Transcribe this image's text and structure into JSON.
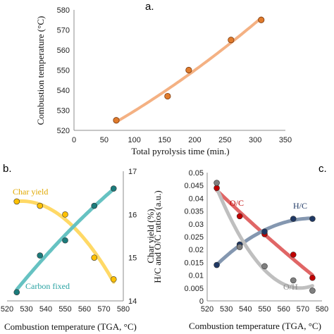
{
  "chart_data": [
    {
      "panel": "a.",
      "type": "scatter",
      "xlabel": "Total pyrolysis time (min.)",
      "ylabel": "Combustion temperature (°C)",
      "xlim": [
        0,
        350
      ],
      "ylim": [
        520,
        580
      ],
      "xticks": [
        "0",
        "50",
        "100",
        "150",
        "200",
        "250",
        "300",
        "350"
      ],
      "yticks": [
        "520",
        "530",
        "540",
        "550",
        "560",
        "570",
        "580"
      ],
      "grid": false,
      "series": [
        {
          "x": [
            70,
            155,
            190,
            260,
            310
          ],
          "y": [
            525,
            537,
            550,
            565,
            575
          ],
          "color": "#e07b2c",
          "trendline": {
            "kind": "quadratic",
            "color": "#f4b183",
            "x_range": [
              70,
              310
            ]
          }
        }
      ]
    },
    {
      "panel": "b.",
      "type": "scatter",
      "xlabel": "Combustion temperature (TGA, °C)",
      "ylabel_right": "Char yield (%)",
      "xlim": [
        520,
        580
      ],
      "y2lim": [
        14,
        17
      ],
      "xticks": [
        "520",
        "530",
        "540",
        "550",
        "560",
        "570",
        "580"
      ],
      "y2ticks": [
        "14",
        "15",
        "16",
        "17"
      ],
      "grid": false,
      "annotations": [
        "Char yield",
        "Carbon fixed"
      ],
      "series": [
        {
          "name": "Char yield",
          "x": [
            525,
            537,
            550,
            565,
            575
          ],
          "y": [
            16.3,
            16.2,
            16.0,
            15.0,
            14.5
          ],
          "color": "#ffc000",
          "trend_color": "#ffd966"
        },
        {
          "name": "Carbon fixed",
          "x": [
            525,
            537,
            550,
            565,
            575
          ],
          "y": [
            14.2,
            15.05,
            15.4,
            16.2,
            16.6
          ],
          "color": "#1b7b7b",
          "trend_color": "#66c2c2"
        }
      ]
    },
    {
      "panel": "c.",
      "type": "scatter",
      "xlabel": "Combustion temperature (TGA, °C)",
      "ylabel": "H/C and O/C ratios (a.u.)",
      "xlim": [
        520,
        580
      ],
      "ylim": [
        0,
        0.05
      ],
      "xticks": [
        "520",
        "530",
        "540",
        "550",
        "560",
        "570",
        "580"
      ],
      "yticks": [
        "0",
        "0.005",
        "0.01",
        "0.015",
        "0.02",
        "0.025",
        "0.03",
        "0.035",
        "0.04",
        "0.045",
        "0.05"
      ],
      "grid": false,
      "series": [
        {
          "name": "O/C",
          "x": [
            525,
            537,
            550,
            565,
            575
          ],
          "y": [
            0.044,
            0.033,
            0.026,
            0.018,
            0.009
          ],
          "color": "#c00000",
          "trend_color": "#e06666"
        },
        {
          "name": "H/C",
          "x": [
            525,
            537,
            550,
            565,
            575
          ],
          "y": [
            0.014,
            0.022,
            0.027,
            0.032,
            0.032
          ],
          "color": "#1f3864",
          "trend_color": "#8497b0"
        },
        {
          "name": "O/H",
          "x": [
            525,
            537,
            550,
            565,
            575
          ],
          "y": [
            0.046,
            0.021,
            0.0135,
            0.008,
            0.004
          ],
          "color": "#7f7f7f",
          "trend_color": "#bfbfbf"
        }
      ]
    }
  ]
}
